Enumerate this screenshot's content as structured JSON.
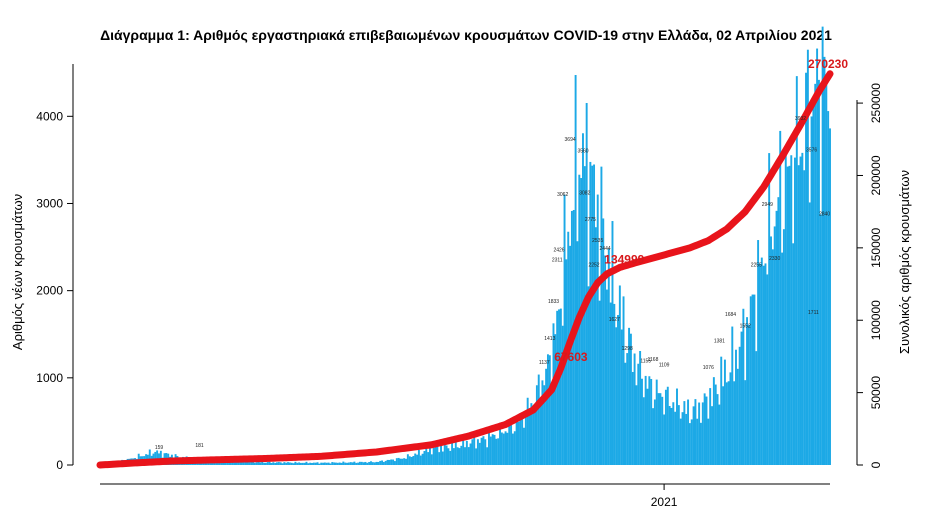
{
  "colors": {
    "bars": "#1ca9e6",
    "cumulative": "#e8141b",
    "callout": "#d7191c",
    "axis": "#000000"
  },
  "chart_data": {
    "type": "bar",
    "title": "Διάγραμμα 1: Αριθμός εργαστηριακά επιβεβαιωμένων κρουσμάτων COVID-19 στην Ελλάδα, 02 Απριλίου 2021",
    "ylabel": "Αριθμός νέων κρουσμάτων",
    "y2label": "Συνολικός αριθμός κρουσμάτων",
    "ylim": [
      0,
      4600
    ],
    "y2lim": [
      0,
      277000
    ],
    "yticks": [
      "0",
      "1000",
      "2000",
      "3000",
      "4000"
    ],
    "yticks_values": [
      0,
      1000,
      2000,
      3000,
      4000
    ],
    "y2ticks": [
      "0",
      "50000",
      "100000",
      "150000",
      "200000",
      "250000"
    ],
    "y2ticks_values": [
      0,
      50000,
      100000,
      150000,
      200000,
      250000
    ],
    "xtick_label": "2021",
    "xtick_day": 306,
    "total_days": 397,
    "grid": false,
    "series": [
      {
        "type": "bar",
        "daily_new_cases_keypoints": [
          [
            0,
            20
          ],
          [
            15,
            60
          ],
          [
            30,
            150
          ],
          [
            45,
            80
          ],
          [
            60,
            50
          ],
          [
            90,
            30
          ],
          [
            120,
            25
          ],
          [
            150,
            35
          ],
          [
            165,
            80
          ],
          [
            180,
            180
          ],
          [
            195,
            230
          ],
          [
            210,
            300
          ],
          [
            225,
            450
          ],
          [
            235,
            700
          ],
          [
            243,
            1100
          ],
          [
            248,
            1600
          ],
          [
            252,
            2300
          ],
          [
            256,
            3000
          ],
          [
            260,
            3500
          ],
          [
            264,
            3400
          ],
          [
            268,
            3100
          ],
          [
            272,
            2700
          ],
          [
            276,
            2300
          ],
          [
            280,
            1900
          ],
          [
            284,
            1600
          ],
          [
            288,
            1300
          ],
          [
            292,
            1100
          ],
          [
            296,
            950
          ],
          [
            300,
            850
          ],
          [
            304,
            800
          ],
          [
            308,
            750
          ],
          [
            312,
            700
          ],
          [
            316,
            650
          ],
          [
            320,
            600
          ],
          [
            326,
            650
          ],
          [
            332,
            800
          ],
          [
            338,
            1000
          ],
          [
            344,
            1200
          ],
          [
            350,
            1500
          ],
          [
            356,
            2000
          ],
          [
            362,
            2600
          ],
          [
            368,
            3000
          ],
          [
            374,
            3300
          ],
          [
            380,
            3700
          ],
          [
            386,
            4100
          ],
          [
            390,
            4300
          ],
          [
            393,
            4350
          ],
          [
            396,
            4100
          ]
        ]
      },
      {
        "type": "line",
        "cumulative_keypoints": [
          [
            0,
            0
          ],
          [
            20,
            1500
          ],
          [
            40,
            2800
          ],
          [
            60,
            3500
          ],
          [
            90,
            4500
          ],
          [
            120,
            6000
          ],
          [
            150,
            9000
          ],
          [
            180,
            14000
          ],
          [
            200,
            20000
          ],
          [
            220,
            28000
          ],
          [
            235,
            38000
          ],
          [
            245,
            52000
          ],
          [
            250,
            67000
          ],
          [
            255,
            85000
          ],
          [
            260,
            102000
          ],
          [
            265,
            116000
          ],
          [
            270,
            126000
          ],
          [
            275,
            132000
          ],
          [
            282,
            136500
          ],
          [
            290,
            139500
          ],
          [
            300,
            143000
          ],
          [
            310,
            146500
          ],
          [
            320,
            150000
          ],
          [
            330,
            155000
          ],
          [
            340,
            163000
          ],
          [
            350,
            175000
          ],
          [
            360,
            192000
          ],
          [
            370,
            213000
          ],
          [
            380,
            235000
          ],
          [
            390,
            258000
          ],
          [
            396,
            270230
          ]
        ]
      }
    ],
    "data_labels": [
      {
        "text": "159",
        "day": 32,
        "value": 159
      },
      {
        "text": "181",
        "day": 54,
        "value": 181
      },
      {
        "text": "1137",
        "day": 241,
        "value": 1137
      },
      {
        "text": "1413",
        "day": 244,
        "value": 1413
      },
      {
        "text": "1833",
        "day": 246,
        "value": 1833
      },
      {
        "text": "2311",
        "day": 248,
        "value": 2311
      },
      {
        "text": "2426",
        "day": 249,
        "value": 2426
      },
      {
        "text": "3062",
        "day": 251,
        "value": 3062
      },
      {
        "text": "3694",
        "day": 255,
        "value": 3694
      },
      {
        "text": "3560",
        "day": 262,
        "value": 3560
      },
      {
        "text": "3082",
        "day": 263,
        "value": 3082
      },
      {
        "text": "2775",
        "day": 266,
        "value": 2775
      },
      {
        "text": "2535",
        "day": 270,
        "value": 2535
      },
      {
        "text": "2444",
        "day": 274,
        "value": 2444
      },
      {
        "text": "2252",
        "day": 268,
        "value": 2252
      },
      {
        "text": "1627",
        "day": 279,
        "value": 1627
      },
      {
        "text": "1298",
        "day": 286,
        "value": 1298
      },
      {
        "text": "1155",
        "day": 296,
        "value": 1155
      },
      {
        "text": "1168",
        "day": 300,
        "value": 1168
      },
      {
        "text": "1109",
        "day": 306,
        "value": 1109
      },
      {
        "text": "1076",
        "day": 330,
        "value": 1076
      },
      {
        "text": "1381",
        "day": 336,
        "value": 1381
      },
      {
        "text": "1684",
        "day": 342,
        "value": 1684
      },
      {
        "text": "1552",
        "day": 350,
        "value": 1552
      },
      {
        "text": "2255",
        "day": 356,
        "value": 2255
      },
      {
        "text": "2949",
        "day": 362,
        "value": 2949
      },
      {
        "text": "2330",
        "day": 366,
        "value": 2330
      },
      {
        "text": "3932",
        "day": 380,
        "value": 3932
      },
      {
        "text": "3576",
        "day": 386,
        "value": 3576
      },
      {
        "text": "1711",
        "day": 387,
        "value": 1711
      },
      {
        "text": "2840",
        "day": 393,
        "value": 2840
      }
    ],
    "callouts": [
      {
        "text": "67603",
        "day": 250,
        "value": 67603
      },
      {
        "text": "134999",
        "day": 279,
        "value": 134999
      },
      {
        "text": "270230",
        "day": 396,
        "value": 270230
      }
    ]
  }
}
